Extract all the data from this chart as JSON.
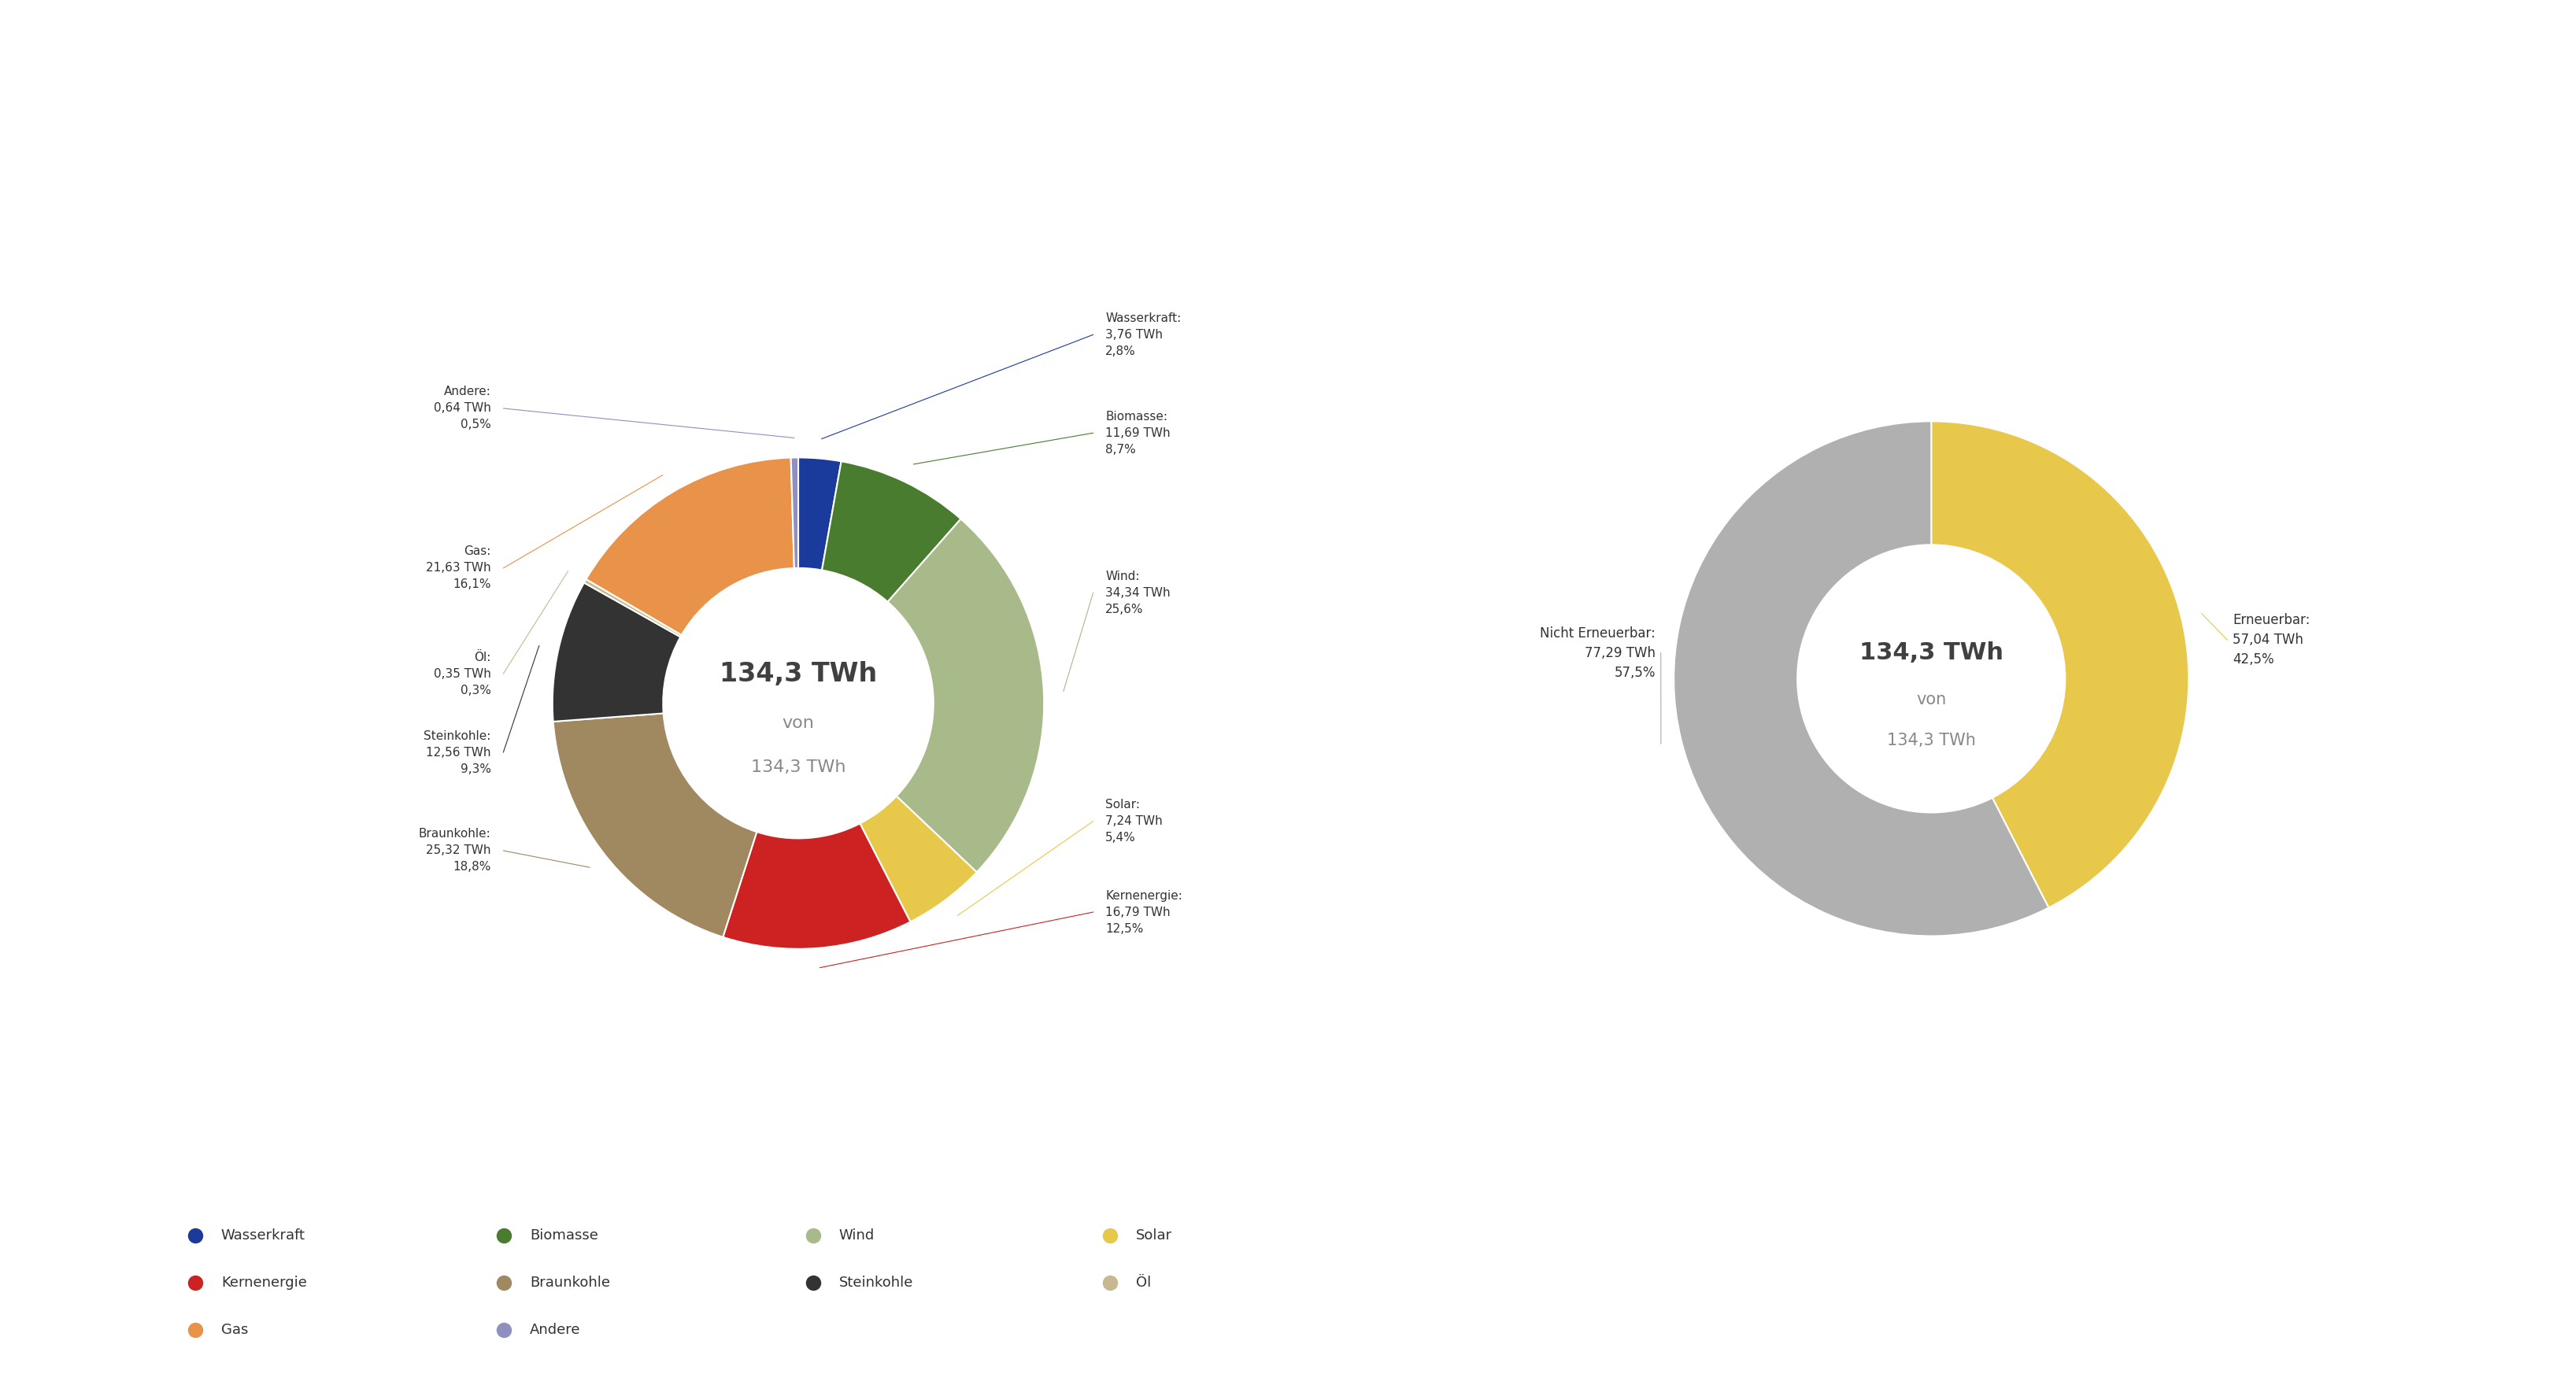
{
  "chart1": {
    "title_line1": "134,3 TWh",
    "title_line2": "von",
    "title_line3": "134,3 TWh",
    "slices": [
      {
        "label": "Wasserkraft",
        "value": 3.76,
        "pct": "2,8%",
        "color": "#1a3a9c"
      },
      {
        "label": "Biomasse",
        "value": 11.69,
        "pct": "8,7%",
        "color": "#4a7c2f"
      },
      {
        "label": "Wind",
        "value": 34.34,
        "pct": "25,6%",
        "color": "#a8ba8a"
      },
      {
        "label": "Solar",
        "value": 7.24,
        "pct": "5,4%",
        "color": "#e8c84a"
      },
      {
        "label": "Kernenergie",
        "value": 16.79,
        "pct": "12,5%",
        "color": "#cc2222"
      },
      {
        "label": "Braunkohle",
        "value": 25.32,
        "pct": "18,8%",
        "color": "#a08860"
      },
      {
        "label": "Steinkohle",
        "value": 12.56,
        "pct": "9,3%",
        "color": "#333333"
      },
      {
        "label": "Öl",
        "value": 0.35,
        "pct": "0,3%",
        "color": "#c8b890"
      },
      {
        "label": "Gas",
        "value": 21.63,
        "pct": "16,1%",
        "color": "#e8924a"
      },
      {
        "label": "Andere",
        "value": 0.64,
        "pct": "0,5%",
        "color": "#9090c0"
      }
    ]
  },
  "chart2": {
    "title_line1": "134,3 TWh",
    "title_line2": "von",
    "title_line3": "134,3 TWh",
    "slices": [
      {
        "label": "Erneuerbar",
        "value": 57.04,
        "pct": "42,5%",
        "color": "#e8c84a"
      },
      {
        "label": "Nicht Erneuerbar",
        "value": 77.29,
        "pct": "57,5%",
        "color": "#b0b0b0"
      }
    ]
  },
  "legend_rows": [
    [
      {
        "label": "Wasserkraft",
        "color": "#1a3a9c"
      },
      {
        "label": "Biomasse",
        "color": "#4a7c2f"
      },
      {
        "label": "Wind",
        "color": "#a8ba8a"
      },
      {
        "label": "Solar",
        "color": "#e8c84a"
      }
    ],
    [
      {
        "label": "Kernenergie",
        "color": "#cc2222"
      },
      {
        "label": "Braunkohle",
        "color": "#a08860"
      },
      {
        "label": "Steinkohle",
        "color": "#333333"
      },
      {
        "label": "Öl",
        "color": "#c8b890"
      }
    ],
    [
      {
        "label": "Gas",
        "color": "#e8924a"
      },
      {
        "label": "Andere",
        "color": "#9090c0"
      }
    ]
  ],
  "bg": "#ffffff"
}
